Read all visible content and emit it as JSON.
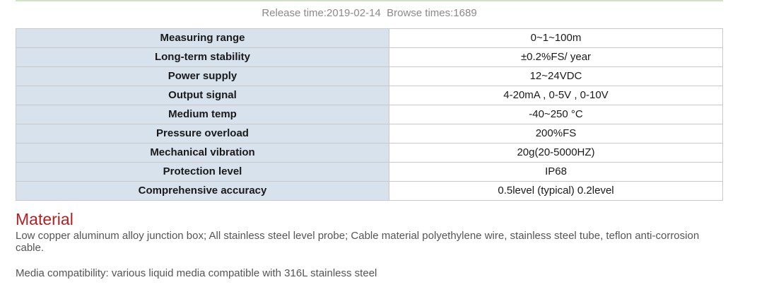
{
  "meta": {
    "release": "Release time:2019-02-14",
    "browse": "Browse times:1689"
  },
  "specs": [
    {
      "label": "Measuring range",
      "value": "0~1~100m"
    },
    {
      "label": "Long-term stability",
      "value": "±0.2%FS/ year"
    },
    {
      "label": "Power supply",
      "value": "12~24VDC"
    },
    {
      "label": "Output signal",
      "value": "4-20mA , 0-5V , 0-10V"
    },
    {
      "label": "Medium temp",
      "value": "-40~250 °C"
    },
    {
      "label": "Pressure overload",
      "value": "200%FS"
    },
    {
      "label": "Mechanical vibration",
      "value": "20g(20-5000HZ)"
    },
    {
      "label": "Protection level",
      "value": "IP68"
    },
    {
      "label": "Comprehensive accuracy",
      "value": "0.5level (typical) 0.2level"
    }
  ],
  "material": {
    "title": "Material",
    "description": "Low copper aluminum alloy junction box; All stainless steel level probe; Cable material polyethylene wire, stainless steel tube, teflon anti-corrosion cable.",
    "compatibility": "Media compatibility: various liquid media compatible with 316L stainless steel"
  }
}
